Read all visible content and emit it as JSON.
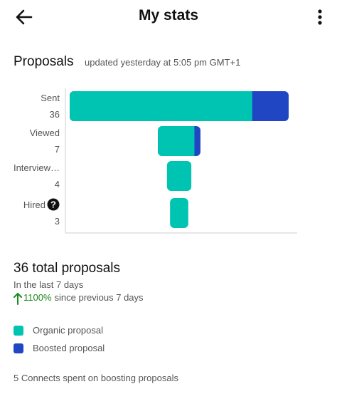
{
  "header": {
    "title": "My stats",
    "back_icon": "arrow-left-icon",
    "menu_icon": "more-vertical-icon"
  },
  "proposals": {
    "title": "Proposals",
    "updated": "updated yesterday at 5:05 pm GMT+1"
  },
  "chart_data": {
    "type": "bar",
    "orientation": "horizontal-centered",
    "categories": [
      "Sent",
      "Viewed",
      "Interview…",
      "Hired"
    ],
    "category_values": [
      "36",
      "7",
      "4",
      "3"
    ],
    "series": [
      {
        "name": "Organic proposal",
        "values": [
          30,
          6,
          4,
          3
        ],
        "color": "#00c4b2"
      },
      {
        "name": "Boosted proposal",
        "values": [
          6,
          1,
          0,
          0
        ],
        "color": "#2046c4"
      }
    ],
    "hired_help_icon": "question-circle-icon"
  },
  "summary": {
    "total": "36 total proposals",
    "period": "In the last 7 days",
    "change_icon": "arrow-up-icon",
    "change_value": "1100%",
    "change_text": "since previous 7 days"
  },
  "legend": [
    {
      "label": "Organic proposal",
      "color": "#00c4b2"
    },
    {
      "label": "Boosted proposal",
      "color": "#2046c4"
    }
  ],
  "connects_note": "5 Connects spent on boosting proposals"
}
